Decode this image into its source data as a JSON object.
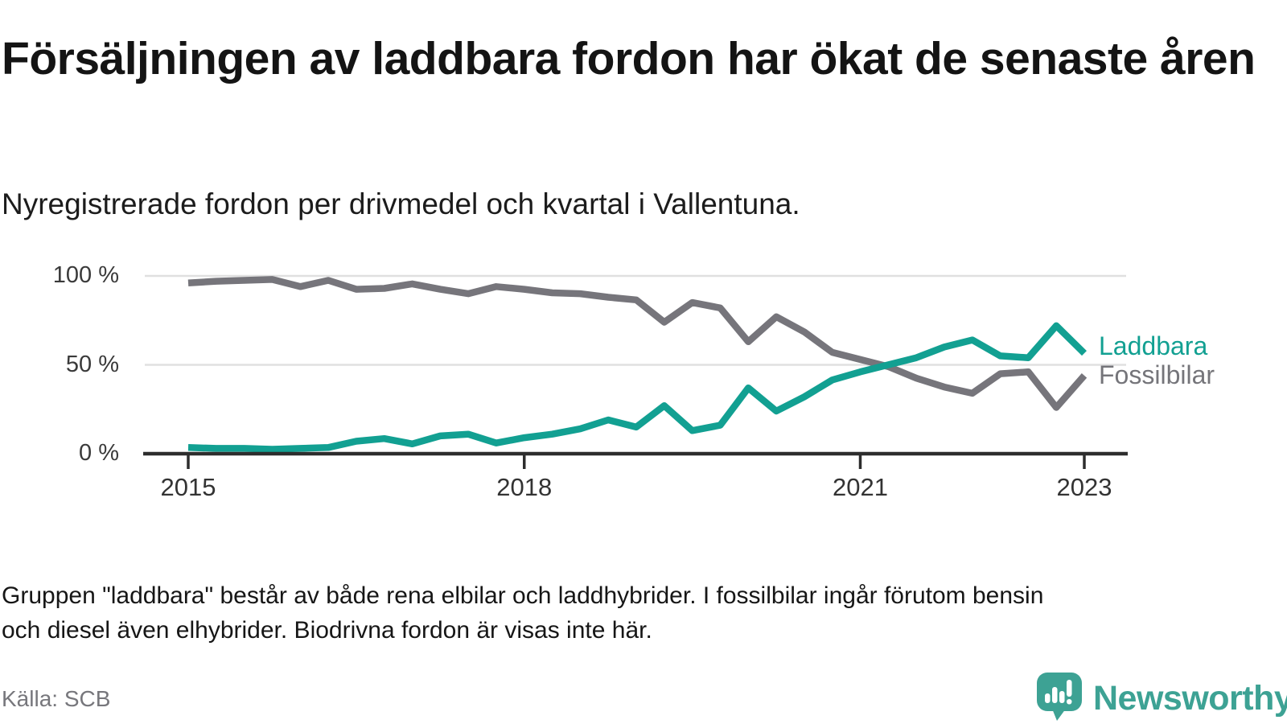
{
  "header": {
    "title": "Försäljningen av laddbara fordon har ökat de senaste åren",
    "subtitle": "Nyregistrerade fordon per drivmedel och kvartal i Vallentuna."
  },
  "chart_data": {
    "type": "line",
    "x_start": "2015 Q1",
    "x_end": "2023 Q1",
    "x_interval": "quarterly",
    "ylim": [
      0,
      100
    ],
    "grid": "horizontal",
    "legend_position": "right-end-of-lines",
    "y_ticks": [
      {
        "value": 100,
        "label": "100 %"
      },
      {
        "value": 50,
        "label": "50 %"
      },
      {
        "value": 0,
        "label": "0 %"
      }
    ],
    "x_ticks": [
      {
        "index": 0,
        "label": "2015"
      },
      {
        "index": 12,
        "label": "2018"
      },
      {
        "index": 24,
        "label": "2021"
      },
      {
        "index": 32,
        "label": "2023"
      }
    ],
    "series": [
      {
        "name": "Fossilbilar",
        "color": "#76757b",
        "values": [
          96,
          97,
          97.5,
          98,
          94,
          97.5,
          92.5,
          93,
          95.5,
          92.5,
          90,
          94,
          92.5,
          90.5,
          90,
          88,
          86.5,
          74,
          85,
          82,
          63,
          77,
          68.5,
          57,
          53,
          49,
          42.5,
          37.5,
          34,
          45,
          46,
          26,
          44
        ]
      },
      {
        "name": "Laddbara",
        "color": "#12a092",
        "values": [
          3.5,
          3,
          3,
          2.5,
          3,
          3.5,
          7,
          8.5,
          5.5,
          10,
          11,
          6,
          9,
          11,
          14,
          19,
          15,
          27,
          13,
          16,
          37,
          24,
          32,
          41.5,
          46,
          50,
          54,
          60,
          64,
          55,
          54,
          72,
          56.5
        ]
      }
    ]
  },
  "footer": {
    "note": "Gruppen \"laddbara\" består av både rena elbilar och laddhybrider. I fossilbilar ingår förutom bensin\noch diesel även elhybrider. Biodrivna fordon är visas inte här.",
    "source": "Källa: SCB"
  },
  "branding": {
    "logo_text": "Newsworthy",
    "logo_color": "#3da294",
    "icon": "speech-bubble-bar-chart-icon"
  }
}
